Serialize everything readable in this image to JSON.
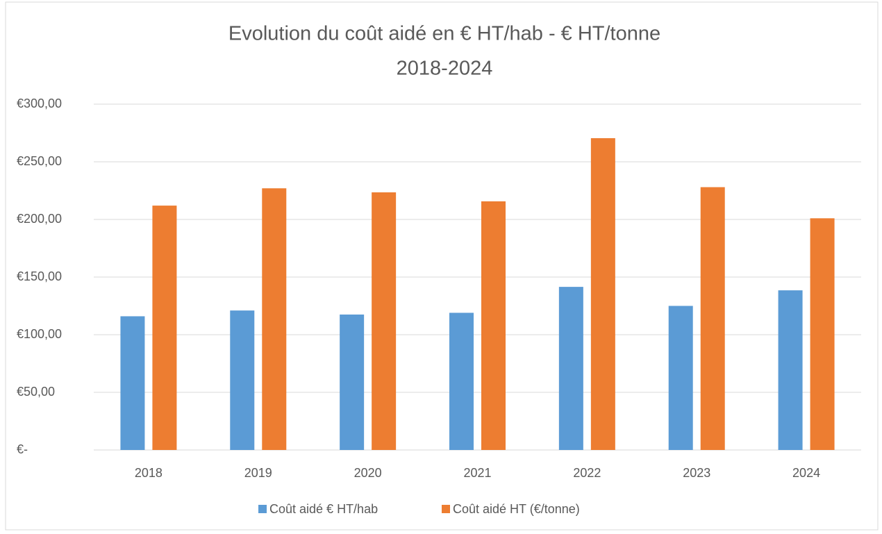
{
  "chart_data": {
    "type": "bar",
    "title": [
      "Evolution du coût aidé en € HT/hab - € HT/tonne",
      "2018-2024"
    ],
    "categories": [
      "2018",
      "2019",
      "2020",
      "2021",
      "2022",
      "2023",
      "2024"
    ],
    "series": [
      {
        "name": "Coût aidé € HT/hab",
        "color": "#5b9bd5",
        "values": [
          116,
          121,
          117.5,
          119,
          141.5,
          125,
          138.5
        ]
      },
      {
        "name": "Coût aidé HT (€/tonne)",
        "color": "#ed7d31",
        "values": [
          212,
          227,
          223.5,
          215.7,
          270.5,
          228,
          201
        ]
      }
    ],
    "ylim": [
      0,
      300
    ],
    "yticks": [
      {
        "value": 0,
        "label": "€-"
      },
      {
        "value": 50,
        "label": "€50,00"
      },
      {
        "value": 100,
        "label": "€100,00"
      },
      {
        "value": 150,
        "label": "€150,00"
      },
      {
        "value": 200,
        "label": "€200,00"
      },
      {
        "value": 250,
        "label": "€250,00"
      },
      {
        "value": 300,
        "label": "€300,00"
      }
    ],
    "grid": true,
    "legend": "bottom"
  }
}
